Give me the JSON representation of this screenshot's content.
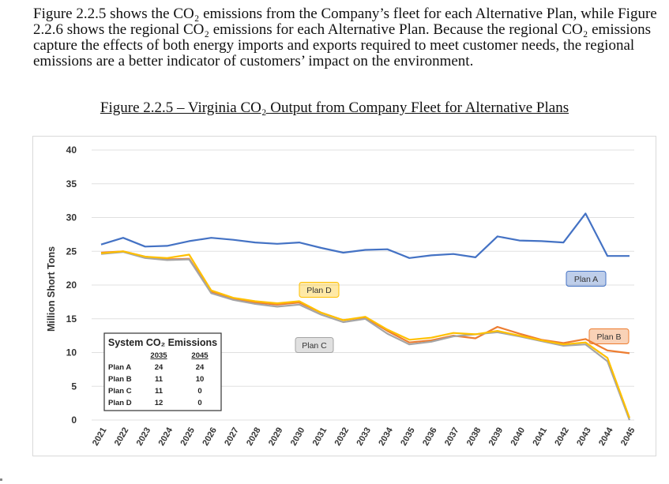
{
  "paragraph": "Figure 2.2.5 shows the CO₂ emissions from the Company’s fleet for each Alternative Plan, while Figure 2.2.6 shows the regional CO₂ emissions for each Alternative Plan.  Because the regional CO₂ emissions capture the effects of both energy imports and exports required to meet customer needs, the regional emissions are a better indicator of customers’ impact on the environment.",
  "figure_title": "Figure 2.2.5 – Virginia CO₂ Output from Company Fleet for Alternative Plans",
  "chart_data": {
    "type": "line",
    "title": "",
    "xlabel": "",
    "ylabel": "Million Short Tons",
    "ylim": [
      0,
      40
    ],
    "yticks": [
      0,
      5,
      10,
      15,
      20,
      25,
      30,
      35,
      40
    ],
    "grid": true,
    "x": [
      "2021",
      "2022",
      "2023",
      "2024",
      "2025",
      "2026",
      "2027",
      "2028",
      "2029",
      "2030",
      "2031",
      "2032",
      "2033",
      "2034",
      "2035",
      "2036",
      "2037",
      "2038",
      "2039",
      "2040",
      "2041",
      "2042",
      "2043",
      "2044",
      "2045"
    ],
    "series": [
      {
        "name": "Plan A",
        "color": "#4472c4",
        "values": [
          26.0,
          27.0,
          25.7,
          25.8,
          26.5,
          27.0,
          26.7,
          26.3,
          26.1,
          26.3,
          25.5,
          24.8,
          25.2,
          25.3,
          24.0,
          24.4,
          24.6,
          24.1,
          27.2,
          26.6,
          26.5,
          26.3,
          30.6,
          24.3,
          24.3
        ]
      },
      {
        "name": "Plan B",
        "color": "#ed7d31",
        "values": [
          24.8,
          25.0,
          24.2,
          23.8,
          23.9,
          19.0,
          17.9,
          17.4,
          17.1,
          17.4,
          15.9,
          14.8,
          15.2,
          13.2,
          11.5,
          11.8,
          12.5,
          12.1,
          13.8,
          12.8,
          11.9,
          11.4,
          12.0,
          10.3,
          9.9
        ]
      },
      {
        "name": "Plan C",
        "color": "#a5a5a5",
        "values": [
          24.6,
          24.9,
          24.0,
          23.7,
          23.8,
          18.8,
          17.8,
          17.2,
          16.8,
          17.1,
          15.6,
          14.5,
          15.0,
          12.8,
          11.2,
          11.6,
          12.4,
          12.7,
          13.0,
          12.4,
          11.7,
          11.0,
          11.2,
          8.7,
          0.0
        ]
      },
      {
        "name": "Plan D",
        "color": "#ffc000",
        "values": [
          24.7,
          25.0,
          24.2,
          24.0,
          24.5,
          19.2,
          18.1,
          17.6,
          17.3,
          17.6,
          15.9,
          14.8,
          15.3,
          13.4,
          11.9,
          12.2,
          12.9,
          12.7,
          13.2,
          12.5,
          11.8,
          11.2,
          11.5,
          9.2,
          0.3
        ]
      }
    ],
    "series_labels": [
      {
        "text": "Plan A",
        "series": 0
      },
      {
        "text": "Plan B",
        "series": 1
      },
      {
        "text": "Plan C",
        "series": 2
      },
      {
        "text": "Plan D",
        "series": 3
      }
    ],
    "inset_table": {
      "title": "System CO₂ Emissions",
      "columns": [
        "2035",
        "2045"
      ],
      "rows": [
        {
          "plan": "Plan A",
          "v2035": "24",
          "v2045": "24"
        },
        {
          "plan": "Plan B",
          "v2035": "11",
          "v2045": "10"
        },
        {
          "plan": "Plan C",
          "v2035": "11",
          "v2045": "0"
        },
        {
          "plan": "Plan D",
          "v2035": "12",
          "v2045": "0"
        }
      ]
    }
  }
}
